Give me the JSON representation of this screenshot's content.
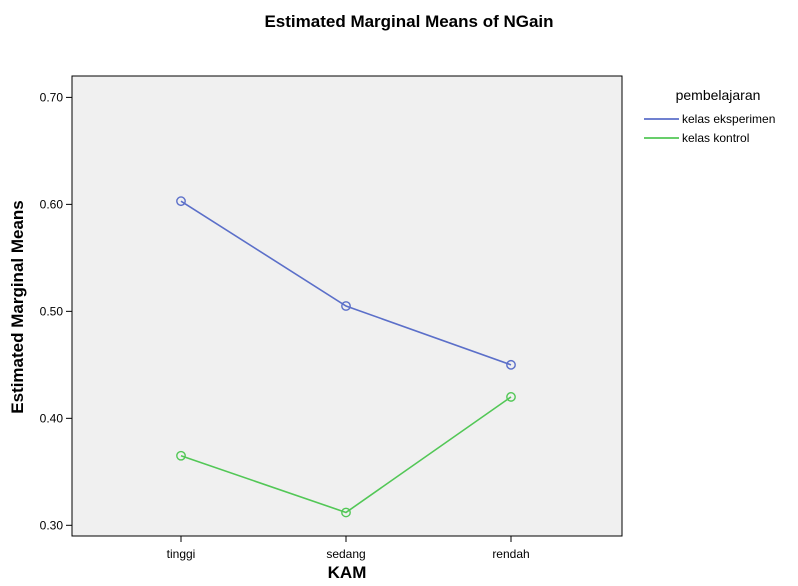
{
  "chart_data": {
    "type": "line",
    "title": "Estimated Marginal Means of NGain",
    "xlabel": "KAM",
    "ylabel": "Estimated Marginal Means",
    "categories": [
      "tinggi",
      "sedang",
      "rendah"
    ],
    "yticks": [
      "0.30",
      "0.40",
      "0.50",
      "0.60",
      "0.70"
    ],
    "ylim": [
      0.29,
      0.72
    ],
    "grid": false,
    "legend": {
      "title": "pembelajaran",
      "placement": "right"
    },
    "series": [
      {
        "name": "kelas eksperimen",
        "color": "#5b6fc9",
        "values": [
          0.603,
          0.505,
          0.45
        ]
      },
      {
        "name": "kelas kontrol",
        "color": "#52c756",
        "values": [
          0.365,
          0.312,
          0.42
        ]
      }
    ],
    "plot_background": "#f0f0f0"
  }
}
